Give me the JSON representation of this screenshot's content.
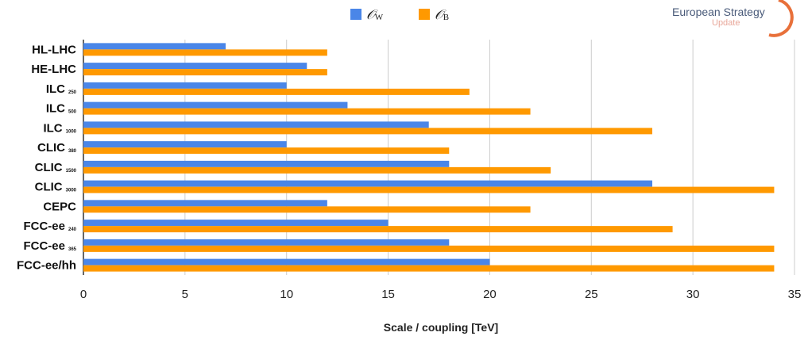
{
  "logo": {
    "title": "European Strategy",
    "subtitle": "Update"
  },
  "chart_data": {
    "type": "bar",
    "orientation": "horizontal",
    "categories": [
      {
        "label": "HL-LHC",
        "sub": ""
      },
      {
        "label": "HE-LHC",
        "sub": ""
      },
      {
        "label": "ILC",
        "sub": "250"
      },
      {
        "label": "ILC",
        "sub": "500"
      },
      {
        "label": "ILC",
        "sub": "1000"
      },
      {
        "label": "CLIC",
        "sub": "380"
      },
      {
        "label": "CLIC",
        "sub": "1500"
      },
      {
        "label": "CLIC",
        "sub": "3000"
      },
      {
        "label": "CEPC",
        "sub": ""
      },
      {
        "label": "FCC-ee",
        "sub": "240"
      },
      {
        "label": "FCC-ee",
        "sub": "365"
      },
      {
        "label": "FCC-ee/hh",
        "sub": ""
      }
    ],
    "series": [
      {
        "name": "W",
        "color": "#4a86e8",
        "values": [
          7,
          11,
          10,
          13,
          17,
          10,
          18,
          28,
          12,
          15,
          18,
          20
        ]
      },
      {
        "name": "B",
        "color": "#ff9900",
        "values": [
          12,
          12,
          19,
          22,
          28,
          18,
          23,
          34,
          22,
          29,
          34,
          34
        ]
      }
    ],
    "legend_position": "top",
    "xlabel": "Scale / coupling [TeV]",
    "xlim": [
      0,
      35
    ],
    "xticks": [
      0,
      5,
      10,
      15,
      20,
      25,
      30,
      35
    ],
    "grid": true
  }
}
